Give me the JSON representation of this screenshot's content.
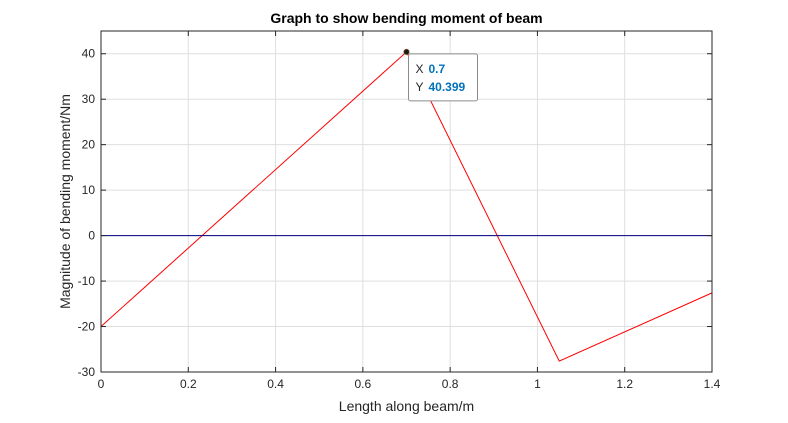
{
  "chart_data": {
    "type": "line",
    "title": "Graph to show bending moment of beam",
    "xlabel": "Length along beam/m",
    "ylabel": "Magnitude of bending moment/Nm",
    "xlim": [
      0,
      1.4
    ],
    "ylim": [
      -30,
      45
    ],
    "grid": true,
    "x_ticks": [
      "0",
      "0.2",
      "0.4",
      "0.6",
      "0.8",
      "1",
      "1.2",
      "1.4"
    ],
    "y_ticks": [
      "-30",
      "-20",
      "-10",
      "0",
      "10",
      "20",
      "30",
      "40"
    ],
    "series": [
      {
        "color": "#ff0000",
        "x": [
          0,
          0.7,
          1.05,
          1.4
        ],
        "y": [
          -20,
          40.399,
          -27.6,
          -12.6
        ]
      },
      {
        "color": "#00007f",
        "x": [
          0,
          1.4
        ],
        "y": [
          0,
          0
        ]
      }
    ],
    "datatip": {
      "x_key": "X",
      "x_value": "0.7",
      "y_key": "Y",
      "y_value": "40.399",
      "point": [
        0.7,
        40.399
      ]
    }
  }
}
